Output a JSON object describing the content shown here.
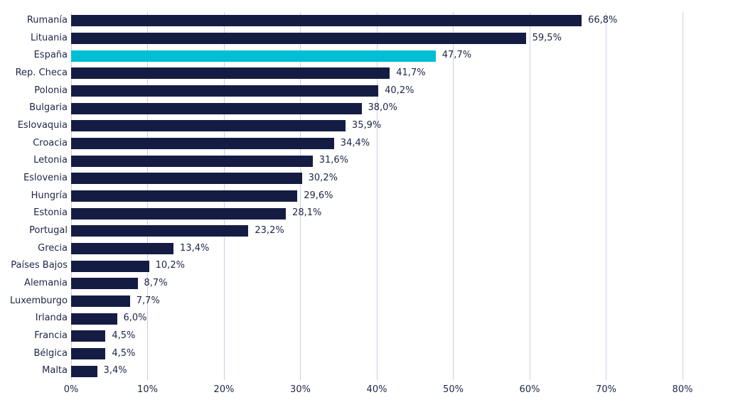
{
  "chart_data": {
    "type": "bar",
    "orientation": "horizontal",
    "grid": true,
    "legend": "none",
    "xlim": [
      0,
      80
    ],
    "x_ticks": [
      "0%",
      "10%",
      "20%",
      "30%",
      "40%",
      "50%",
      "60%",
      "70%",
      "80%"
    ],
    "x_tick_values": [
      0,
      10,
      20,
      30,
      40,
      50,
      60,
      70,
      80
    ],
    "categories": [
      "Rumanía",
      "Lituania",
      "España",
      "Rep. Checa",
      "Polonia",
      "Bulgaria",
      "Eslovaquia",
      "Croacia",
      "Letonia",
      "Eslovenia",
      "Hungría",
      "Estonia",
      "Portugal",
      "Grecia",
      "Países Bajos",
      "Alemania",
      "Luxemburgo",
      "Irlanda",
      "Francia",
      "Bélgica",
      "Malta"
    ],
    "values": [
      66.8,
      59.5,
      47.7,
      41.7,
      40.2,
      38.0,
      35.9,
      34.4,
      31.6,
      30.2,
      29.6,
      28.1,
      23.2,
      13.4,
      10.2,
      8.7,
      7.7,
      6.0,
      4.5,
      4.5,
      3.4
    ],
    "value_labels": [
      "66,8%",
      "59,5%",
      "47,7%",
      "41,7%",
      "40,2%",
      "38,0%",
      "35,9%",
      "34,4%",
      "31,6%",
      "30,2%",
      "29,6%",
      "28,1%",
      "23,2%",
      "13,4%",
      "10,2%",
      "8,7%",
      "7,7%",
      "6,0%",
      "4,5%",
      "4,5%",
      "3,4%"
    ],
    "highlight_category": "España",
    "colors": {
      "bar": "#151C44",
      "highlight": "#00BED6",
      "gridline": "#C9CEE9",
      "text": "#1E2647"
    }
  }
}
